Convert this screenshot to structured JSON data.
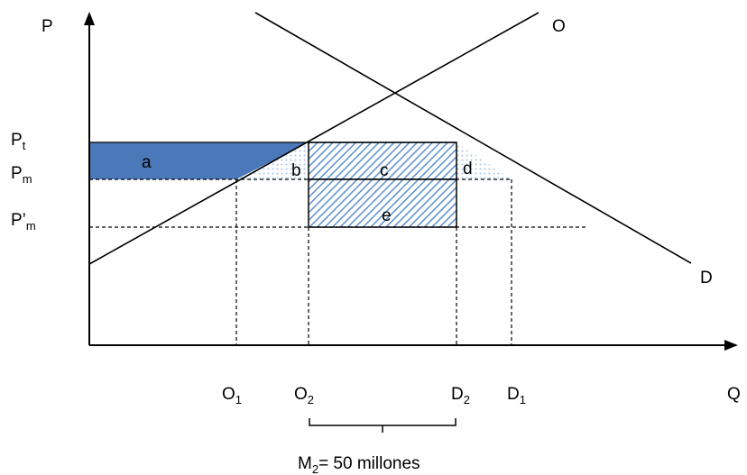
{
  "axes": {
    "y_label": "P",
    "x_label": "Q"
  },
  "curves": {
    "supply_label": "O",
    "demand_label": "D"
  },
  "price_labels": {
    "pt": {
      "base": "P",
      "sub": "t"
    },
    "pm": {
      "base": "P",
      "sub": "m"
    },
    "pm_prime": {
      "base": "P’",
      "sub": "m"
    }
  },
  "quantity_labels": {
    "o1": {
      "base": "O",
      "sub": "1"
    },
    "o2": {
      "base": "O",
      "sub": "2"
    },
    "d2": {
      "base": "D",
      "sub": "2"
    },
    "d1": {
      "base": "D",
      "sub": "1"
    }
  },
  "areas": {
    "a": "a",
    "b": "b",
    "c": "c",
    "d": "d",
    "e": "e"
  },
  "annotation": {
    "m_base": "M",
    "m_sub": "2",
    "m_rest": "= 50 millones"
  },
  "colors": {
    "area_a": "#4a78b8",
    "hatch": "#5b8fd0",
    "dots": "#a8c4e8"
  }
}
